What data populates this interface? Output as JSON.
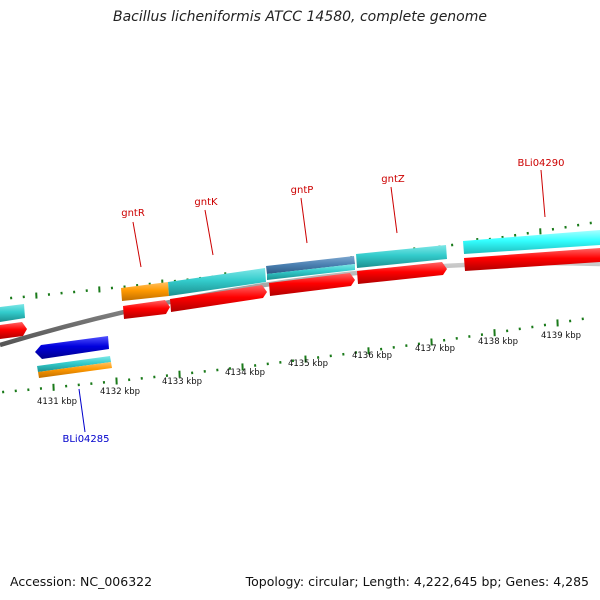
{
  "title": "Bacillus licheniformis ATCC 14580, complete genome",
  "footer": {
    "accession": "Accession: NC_006322",
    "summary": "Topology: circular; Length: 4,222,645 bp; Genes: 4,285"
  },
  "colors": {
    "forward_cds": "#ff0000",
    "reverse_cds": "#0000dd",
    "gene_cyan": "#33cccc",
    "gene_orange": "#ff9900",
    "gene_steelblue": "#4a7fb0",
    "backbone": "#888888",
    "tick": "#1a7a1a",
    "label_forward": "#cc0000",
    "label_reverse": "#0000cc"
  },
  "scale_labels": [
    "4131 kbp",
    "4132 kbp",
    "4133 kbp",
    "4134 kbp",
    "4135 kbp",
    "4136 kbp",
    "4137 kbp",
    "4138 kbp",
    "4139 kbp"
  ],
  "gene_labels": [
    {
      "name": "gntR",
      "strand": "forward"
    },
    {
      "name": "gntK",
      "strand": "forward"
    },
    {
      "name": "gntP",
      "strand": "forward"
    },
    {
      "name": "gntZ",
      "strand": "forward"
    },
    {
      "name": "BLi04290",
      "strand": "forward"
    },
    {
      "name": "BLi04285",
      "strand": "reverse"
    }
  ]
}
